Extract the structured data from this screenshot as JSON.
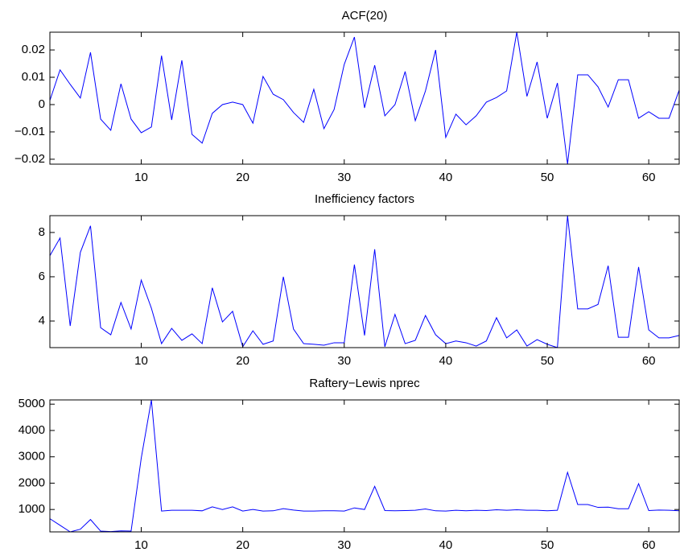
{
  "chart_data": [
    {
      "type": "line",
      "title": "ACF(20)",
      "x": [
        1,
        2,
        3,
        4,
        5,
        6,
        7,
        8,
        9,
        10,
        11,
        12,
        13,
        14,
        15,
        16,
        17,
        18,
        19,
        20,
        21,
        22,
        23,
        24,
        25,
        26,
        27,
        28,
        29,
        30,
        31,
        32,
        33,
        34,
        35,
        36,
        37,
        38,
        39,
        40,
        41,
        42,
        43,
        44,
        45,
        46,
        47,
        48,
        49,
        50,
        51,
        52,
        53,
        54,
        55,
        56,
        57,
        58,
        59,
        60,
        61,
        62,
        63
      ],
      "series": [
        {
          "color": "#0000ff",
          "values": [
            0.0015,
            0.0127,
            0.0074,
            0.0024,
            0.0191,
            -0.0053,
            -0.0094,
            0.0076,
            -0.0053,
            -0.0103,
            -0.0082,
            0.0179,
            -0.0056,
            0.0162,
            -0.0109,
            -0.0141,
            -0.0032,
            0.0,
            0.0009,
            0.0,
            -0.0068,
            0.0103,
            0.0038,
            0.0018,
            -0.0029,
            -0.0065,
            0.0056,
            -0.0088,
            -0.0018,
            0.0147,
            0.0247,
            -0.0012,
            0.0144,
            -0.0041,
            0.0,
            0.0121,
            -0.0059,
            0.005,
            0.02,
            -0.012,
            -0.0035,
            -0.0074,
            -0.0041,
            0.0009,
            0.0026,
            0.005,
            0.0265,
            0.003,
            0.0156,
            -0.005,
            0.0079,
            -0.0218,
            0.0109,
            0.0109,
            0.0065,
            -0.0009,
            0.0091,
            0.0091,
            -0.005,
            -0.0026,
            -0.005,
            -0.005,
            0.0053
          ]
        }
      ],
      "xlim": [
        1,
        63
      ],
      "ylim": [
        -0.0218,
        0.0265
      ],
      "xticks": [
        10,
        20,
        30,
        40,
        50,
        60
      ],
      "yticks": [
        {
          "value": -0.02,
          "label": "−0.02"
        },
        {
          "value": -0.01,
          "label": "−0.01"
        },
        0,
        0.01,
        0.02
      ]
    },
    {
      "type": "line",
      "title": "Inefficiency factors",
      "x": [
        1,
        2,
        3,
        4,
        5,
        6,
        7,
        8,
        9,
        10,
        11,
        12,
        13,
        14,
        15,
        16,
        17,
        18,
        19,
        20,
        21,
        22,
        23,
        24,
        25,
        26,
        27,
        28,
        29,
        30,
        31,
        32,
        33,
        34,
        35,
        36,
        37,
        38,
        39,
        40,
        41,
        42,
        43,
        44,
        45,
        46,
        47,
        48,
        49,
        50,
        51,
        52,
        53,
        54,
        55,
        56,
        57,
        58,
        59,
        60,
        61,
        62,
        63
      ],
      "series": [
        {
          "color": "#0000ff",
          "values": [
            6.95,
            7.75,
            3.78,
            7.1,
            8.3,
            3.7,
            3.38,
            4.84,
            3.64,
            5.85,
            4.58,
            2.98,
            3.67,
            3.13,
            3.42,
            2.98,
            5.5,
            3.96,
            4.44,
            2.84,
            3.56,
            2.95,
            3.1,
            6.0,
            3.64,
            2.98,
            2.95,
            2.91,
            3.02,
            3.02,
            6.55,
            3.35,
            7.24,
            2.84,
            4.3,
            2.98,
            3.13,
            4.25,
            3.38,
            2.98,
            3.1,
            3.02,
            2.87,
            3.1,
            4.15,
            3.24,
            3.6,
            2.87,
            3.16,
            2.95,
            2.8,
            8.76,
            4.55,
            4.55,
            4.75,
            6.5,
            3.27,
            3.27,
            6.44,
            3.6,
            3.24,
            3.24,
            3.35
          ]
        }
      ],
      "xlim": [
        1,
        63
      ],
      "ylim": [
        2.8,
        8.76
      ],
      "xticks": [
        10,
        20,
        30,
        40,
        50,
        60
      ],
      "yticks": [
        4,
        6,
        8
      ]
    },
    {
      "type": "line",
      "title": "Raftery−Lewis nprec",
      "x": [
        1,
        2,
        3,
        4,
        5,
        6,
        7,
        8,
        9,
        10,
        11,
        12,
        13,
        14,
        15,
        16,
        17,
        18,
        19,
        20,
        21,
        22,
        23,
        24,
        25,
        26,
        27,
        28,
        29,
        30,
        31,
        32,
        33,
        34,
        35,
        36,
        37,
        38,
        39,
        40,
        41,
        42,
        43,
        44,
        45,
        46,
        47,
        48,
        49,
        50,
        51,
        52,
        53,
        54,
        55,
        56,
        57,
        58,
        59,
        60,
        61,
        62,
        63
      ],
      "series": [
        {
          "color": "#0000ff",
          "values": [
            650,
            400,
            150,
            250,
            620,
            180,
            160,
            190,
            180,
            2950,
            5160,
            940,
            970,
            970,
            970,
            950,
            1100,
            1000,
            1100,
            940,
            1000,
            940,
            950,
            1030,
            980,
            940,
            940,
            950,
            950,
            940,
            1060,
            1000,
            1880,
            960,
            950,
            960,
            970,
            1020,
            950,
            940,
            970,
            950,
            970,
            960,
            990,
            970,
            990,
            970,
            970,
            950,
            970,
            2410,
            1190,
            1190,
            1080,
            1090,
            1030,
            1030,
            1980,
            960,
            980,
            970,
            950
          ]
        }
      ],
      "xlim": [
        1,
        63
      ],
      "ylim": [
        150,
        5160
      ],
      "xticks": [
        10,
        20,
        30,
        40,
        50,
        60
      ],
      "yticks": [
        1000,
        2000,
        3000,
        4000,
        5000
      ]
    }
  ]
}
